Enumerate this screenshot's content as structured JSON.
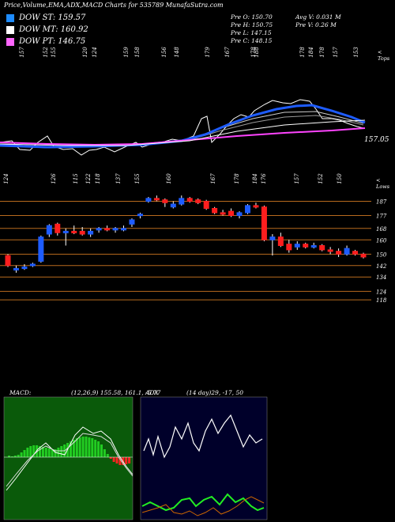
{
  "header": {
    "title": "Price,Volume,EMA,ADX,MACD Charts for 535789 MunafaSutra.com"
  },
  "legend": [
    {
      "label": "DOW ST: 159.57",
      "color": "#1e8cff"
    },
    {
      "label": "DOW MT: 160.92",
      "color": "#ffffff"
    },
    {
      "label": "DOW PT: 146.75",
      "color": "#ff66ff"
    }
  ],
  "stats": {
    "prev_open": "Pre  O: 150.70",
    "prev_high": "Pre  H: 150.75",
    "prev_low": "Pre  L: 147.15",
    "prev_close": "Pre  C: 148.15",
    "avg_volume": "Avg V: 0.031 M",
    "prev_volume": "Pre  V: 0.26  M"
  },
  "top_panel": {
    "side_label": "< Tops",
    "last_close_label": "157.05",
    "top_labels": [
      "157",
      "152",
      "155",
      "120",
      "124",
      "159",
      "158",
      "156",
      "148",
      "179",
      "167",
      "178",
      "188",
      "178",
      "184",
      "178",
      "157",
      "153"
    ]
  },
  "lows_row": {
    "side_label": "< Lows",
    "labels": [
      "124",
      "126",
      "115",
      "122",
      "118",
      "137",
      "155",
      "160",
      "167",
      "178",
      "184",
      "176",
      "157",
      "152",
      "150"
    ]
  },
  "price_levels": [
    {
      "label": "187",
      "value": 187
    },
    {
      "label": "177",
      "value": 177
    },
    {
      "label": "168",
      "value": 168
    },
    {
      "label": "160",
      "value": 160
    },
    {
      "label": "150",
      "value": 150
    },
    {
      "label": "142",
      "value": 142
    },
    {
      "label": "134",
      "value": 134
    },
    {
      "label": "124",
      "value": 124
    },
    {
      "label": "118",
      "value": 118
    }
  ],
  "macd": {
    "header": "MACD:",
    "values": "(12,26,9) 155.58,  161.1, -5.77"
  },
  "adx": {
    "header": "ADX",
    "values": "(14  day)29, -17,  50"
  },
  "chart_data": {
    "type": "candlestick",
    "ylim": [
      112,
      195
    ],
    "candles": [
      {
        "o": 149,
        "h": 150,
        "l": 141,
        "c": 142
      },
      {
        "o": 139,
        "h": 142,
        "l": 137,
        "c": 140
      },
      {
        "o": 140,
        "h": 143,
        "l": 139,
        "c": 141
      },
      {
        "o": 142,
        "h": 144,
        "l": 141,
        "c": 143
      },
      {
        "o": 145,
        "h": 163,
        "l": 144,
        "c": 162
      },
      {
        "o": 164,
        "h": 171,
        "l": 162,
        "c": 170
      },
      {
        "o": 171,
        "h": 172,
        "l": 163,
        "c": 165
      },
      {
        "o": 165,
        "h": 168,
        "l": 156,
        "c": 166
      },
      {
        "o": 166,
        "h": 170,
        "l": 164,
        "c": 165
      },
      {
        "o": 166,
        "h": 169,
        "l": 163,
        "c": 164
      },
      {
        "o": 164,
        "h": 168,
        "l": 162,
        "c": 166
      },
      {
        "o": 167,
        "h": 169,
        "l": 165,
        "c": 168
      },
      {
        "o": 168,
        "h": 170,
        "l": 166,
        "c": 167
      },
      {
        "o": 167,
        "h": 169,
        "l": 165,
        "c": 168
      },
      {
        "o": 167,
        "h": 170,
        "l": 166,
        "c": 168
      },
      {
        "o": 171,
        "h": 175,
        "l": 169,
        "c": 174
      },
      {
        "o": 177,
        "h": 179,
        "l": 175,
        "c": 178
      },
      {
        "o": 187,
        "h": 190,
        "l": 186,
        "c": 189
      },
      {
        "o": 189,
        "h": 191,
        "l": 187,
        "c": 188
      },
      {
        "o": 188,
        "h": 189,
        "l": 183,
        "c": 186
      },
      {
        "o": 183,
        "h": 187,
        "l": 182,
        "c": 185
      },
      {
        "o": 185,
        "h": 191,
        "l": 184,
        "c": 189
      },
      {
        "o": 189,
        "h": 190,
        "l": 186,
        "c": 187
      },
      {
        "o": 188,
        "h": 189,
        "l": 185,
        "c": 186
      },
      {
        "o": 187,
        "h": 188,
        "l": 181,
        "c": 182
      },
      {
        "o": 182,
        "h": 183,
        "l": 178,
        "c": 179
      },
      {
        "o": 179,
        "h": 181,
        "l": 177,
        "c": 178
      },
      {
        "o": 180,
        "h": 182,
        "l": 176,
        "c": 177
      },
      {
        "o": 177,
        "h": 180,
        "l": 175,
        "c": 179
      },
      {
        "o": 179,
        "h": 185,
        "l": 178,
        "c": 184
      },
      {
        "o": 184,
        "h": 186,
        "l": 182,
        "c": 183
      },
      {
        "o": 183,
        "h": 184,
        "l": 159,
        "c": 160
      },
      {
        "o": 160,
        "h": 164,
        "l": 149,
        "c": 162
      },
      {
        "o": 162,
        "h": 165,
        "l": 155,
        "c": 156
      },
      {
        "o": 157,
        "h": 160,
        "l": 151,
        "c": 153
      },
      {
        "o": 155,
        "h": 159,
        "l": 153,
        "c": 157
      },
      {
        "o": 157,
        "h": 158,
        "l": 154,
        "c": 155
      },
      {
        "o": 155,
        "h": 158,
        "l": 154,
        "c": 156
      },
      {
        "o": 156,
        "h": 157,
        "l": 152,
        "c": 153
      },
      {
        "o": 153,
        "h": 155,
        "l": 150,
        "c": 152
      },
      {
        "o": 152,
        "h": 154,
        "l": 148,
        "c": 150
      },
      {
        "o": 150,
        "h": 156,
        "l": 149,
        "c": 154
      },
      {
        "o": 152,
        "h": 153,
        "l": 149,
        "c": 150
      },
      {
        "o": 150,
        "h": 151,
        "l": 147,
        "c": 148
      }
    ],
    "up_color": "#1e5cff",
    "down_color": "#ff1e1e"
  }
}
